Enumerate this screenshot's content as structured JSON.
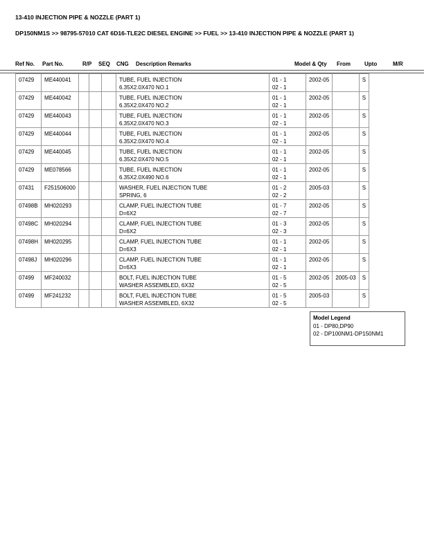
{
  "title": "13-410 INJECTION PIPE & NOZZLE (PART 1)",
  "breadcrumb": "DP150NM1S >> 98795-57010 CAT 6D16-TLE2C DIESEL ENGINE >> FUEL >> 13-410 INJECTION PIPE & NOZZLE (PART 1)",
  "columns": [
    "Ref No.",
    "Part No.",
    "R/P",
    "SEQ",
    "CNG",
    "Description Remarks",
    "Model & Qty",
    "From",
    "Upto",
    "M/R"
  ],
  "rows": [
    {
      "ref": "07429",
      "part": "ME440041",
      "rp": "",
      "seq": "",
      "cng": "",
      "desc1": "TUBE, FUEL INJECTION",
      "desc2": "6.35X2.0X470 NO.1",
      "q1": "01 - 1",
      "q2": "02 - 1",
      "from": "2002-05",
      "upto": "",
      "mr": "S"
    },
    {
      "ref": "07429",
      "part": "ME440042",
      "rp": "",
      "seq": "",
      "cng": "",
      "desc1": "TUBE, FUEL INJECTION",
      "desc2": "6.35X2.0X470 NO.2",
      "q1": "01 - 1",
      "q2": "02 - 1",
      "from": "2002-05",
      "upto": "",
      "mr": "S"
    },
    {
      "ref": "07429",
      "part": "ME440043",
      "rp": "",
      "seq": "",
      "cng": "",
      "desc1": "TUBE, FUEL INJECTION",
      "desc2": "6.35X2.0X470 NO.3",
      "q1": "01 - 1",
      "q2": "02 - 1",
      "from": "2002-05",
      "upto": "",
      "mr": "S"
    },
    {
      "ref": "07429",
      "part": "ME440044",
      "rp": "",
      "seq": "",
      "cng": "",
      "desc1": "TUBE, FUEL INJECTION",
      "desc2": "6.35X2.0X470 NO.4",
      "q1": "01 - 1",
      "q2": "02 - 1",
      "from": "2002-05",
      "upto": "",
      "mr": "S"
    },
    {
      "ref": "07429",
      "part": "ME440045",
      "rp": "",
      "seq": "",
      "cng": "",
      "desc1": "TUBE, FUEL INJECTION",
      "desc2": "6.35X2.0X470 NO.5",
      "q1": "01 - 1",
      "q2": "02 - 1",
      "from": "2002-05",
      "upto": "",
      "mr": "S"
    },
    {
      "ref": "07429",
      "part": "ME078566",
      "rp": "",
      "seq": "",
      "cng": "",
      "desc1": "TUBE, FUEL INJECTION",
      "desc2": "6.35X2.0X490 NO.6",
      "q1": "01 - 1",
      "q2": "02 - 1",
      "from": "2002-05",
      "upto": "",
      "mr": "S"
    },
    {
      "ref": "07431",
      "part": "F251506000",
      "rp": "",
      "seq": "",
      "cng": "",
      "desc1": "WASHER, FUEL INJECTION TUBE",
      "desc2": "SPRING, 6",
      "q1": "01 - 2",
      "q2": "02 - 2",
      "from": "2005-03",
      "upto": "",
      "mr": "S"
    },
    {
      "ref": "07498B",
      "part": "MH020293",
      "rp": "",
      "seq": "",
      "cng": "",
      "desc1": "CLAMP, FUEL INJECTION TUBE",
      "desc2": "D=6X2",
      "q1": "01 - 7",
      "q2": "02 - 7",
      "from": "2002-05",
      "upto": "",
      "mr": "S"
    },
    {
      "ref": "07498C",
      "part": "MH020294",
      "rp": "",
      "seq": "",
      "cng": "",
      "desc1": "CLAMP, FUEL INJECTION TUBE",
      "desc2": "D=6X2",
      "q1": "01 - 3",
      "q2": "02 - 3",
      "from": "2002-05",
      "upto": "",
      "mr": "S"
    },
    {
      "ref": "07498H",
      "part": "MH020295",
      "rp": "",
      "seq": "",
      "cng": "",
      "desc1": "CLAMP, FUEL INJECTION TUBE",
      "desc2": "D=6X3",
      "q1": "01 - 1",
      "q2": "02 - 1",
      "from": "2002-05",
      "upto": "",
      "mr": "S"
    },
    {
      "ref": "07498J",
      "part": "MH020296",
      "rp": "",
      "seq": "",
      "cng": "",
      "desc1": "CLAMP, FUEL INJECTION TUBE",
      "desc2": "D=6X3",
      "q1": "01 - 1",
      "q2": "02 - 1",
      "from": "2002-05",
      "upto": "",
      "mr": "S"
    },
    {
      "ref": "07499",
      "part": "MF240032",
      "rp": "",
      "seq": "",
      "cng": "",
      "desc1": "BOLT, FUEL INJECTION TUBE",
      "desc2": "WASHER ASSEMBLED, 6X32",
      "q1": "01 - 5",
      "q2": "02 - 5",
      "from": "2002-05",
      "upto": "2005-03",
      "mr": "S"
    },
    {
      "ref": "07499",
      "part": "MF241232",
      "rp": "",
      "seq": "",
      "cng": "",
      "desc1": "BOLT, FUEL INJECTION TUBE",
      "desc2": "WASHER ASSEMBLED, 6X32",
      "q1": "01 - 5",
      "q2": "02 - 5",
      "from": "2005-03",
      "upto": "",
      "mr": "S"
    }
  ],
  "legend": {
    "title": "Model Legend",
    "items": [
      "01 - DP80,DP90",
      "02 - DP100NM1-DP150NM1"
    ]
  }
}
